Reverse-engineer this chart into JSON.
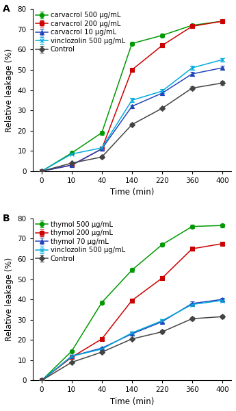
{
  "time_points": [
    0,
    10,
    40,
    140,
    220,
    360,
    400
  ],
  "time_labels": [
    "0",
    "10",
    "40",
    "140",
    "220",
    "360",
    "400"
  ],
  "panel_A": {
    "title": "A",
    "series": [
      {
        "label": "carvacrol 500 μg/mL",
        "color": "#009900",
        "marker": "o",
        "linestyle": "-",
        "values": [
          0,
          9.0,
          19.0,
          63.0,
          67.0,
          72.0,
          74.0
        ],
        "errors": [
          0,
          0.5,
          1.0,
          0.8,
          0.8,
          0.8,
          0.8
        ]
      },
      {
        "label": "carvacrol 200 μg/mL",
        "color": "#cc0000",
        "marker": "s",
        "linestyle": "-",
        "values": [
          0,
          3.0,
          11.0,
          50.0,
          62.0,
          71.5,
          74.0
        ],
        "errors": [
          0,
          0.4,
          0.8,
          0.8,
          0.8,
          0.8,
          0.8
        ]
      },
      {
        "label": "carvacrol 10 μg/mL",
        "color": "#2244bb",
        "marker": "^",
        "linestyle": "-",
        "values": [
          0,
          3.0,
          11.0,
          32.0,
          38.5,
          48.0,
          51.0
        ],
        "errors": [
          0,
          0.4,
          0.8,
          0.8,
          1.0,
          1.0,
          1.0
        ]
      },
      {
        "label": "vinclozolin 500 μg/mL",
        "color": "#00aadd",
        "marker": "x",
        "linestyle": "-",
        "values": [
          0,
          8.5,
          11.5,
          35.0,
          39.5,
          51.0,
          55.0
        ],
        "errors": [
          0,
          0.5,
          0.8,
          1.0,
          1.0,
          1.0,
          0.8
        ]
      },
      {
        "label": "Control",
        "color": "#444444",
        "marker": "D",
        "linestyle": "-",
        "values": [
          0,
          4.0,
          7.0,
          23.0,
          31.0,
          41.0,
          43.5
        ],
        "errors": [
          0,
          0.4,
          0.5,
          0.5,
          0.5,
          0.8,
          1.0
        ]
      }
    ],
    "ylabel": "Relative leakage (%)",
    "xlabel": "Time (min)",
    "ylim": [
      0,
      80
    ],
    "yticks": [
      0,
      10,
      20,
      30,
      40,
      50,
      60,
      70,
      80
    ]
  },
  "panel_B": {
    "title": "B",
    "series": [
      {
        "label": "thymol 500 μg/mL",
        "color": "#009900",
        "marker": "o",
        "linestyle": "-",
        "values": [
          0,
          14.5,
          38.5,
          54.5,
          67.0,
          76.0,
          76.5
        ],
        "errors": [
          0,
          0.5,
          0.8,
          1.0,
          0.8,
          0.8,
          0.8
        ]
      },
      {
        "label": "thymol 200 μg/mL",
        "color": "#cc0000",
        "marker": "s",
        "linestyle": "-",
        "values": [
          0,
          11.5,
          20.5,
          39.5,
          50.5,
          65.0,
          67.5
        ],
        "errors": [
          0,
          0.5,
          0.8,
          1.0,
          1.0,
          0.8,
          0.8
        ]
      },
      {
        "label": "thymol 70 μg/mL",
        "color": "#2244bb",
        "marker": "^",
        "linestyle": "-",
        "values": [
          0,
          12.0,
          16.0,
          23.0,
          29.0,
          38.0,
          40.0
        ],
        "errors": [
          0,
          0.5,
          0.5,
          0.8,
          0.8,
          1.0,
          0.8
        ]
      },
      {
        "label": "vinclozolin 500 μg/mL",
        "color": "#00aadd",
        "marker": "x",
        "linestyle": "-",
        "values": [
          0,
          12.0,
          15.5,
          23.5,
          29.5,
          37.5,
          39.5
        ],
        "errors": [
          0,
          0.5,
          0.5,
          0.8,
          0.8,
          1.0,
          0.8
        ]
      },
      {
        "label": "Control",
        "color": "#444444",
        "marker": "D",
        "linestyle": "-",
        "values": [
          0,
          9.0,
          14.0,
          20.5,
          24.0,
          30.5,
          31.5
        ],
        "errors": [
          0,
          0.4,
          0.5,
          0.5,
          0.8,
          0.8,
          0.8
        ]
      }
    ],
    "ylabel": "Relative leakage (%)",
    "xlabel": "Time (min)",
    "ylim": [
      0,
      80
    ],
    "yticks": [
      0,
      10,
      20,
      30,
      40,
      50,
      60,
      70,
      80
    ]
  },
  "markersize": 4.5,
  "linewidth": 1.1,
  "capsize": 2,
  "elinewidth": 0.8,
  "legend_fontsize": 7.2,
  "axis_label_fontsize": 8.5,
  "tick_fontsize": 7.5,
  "title_fontsize": 10
}
